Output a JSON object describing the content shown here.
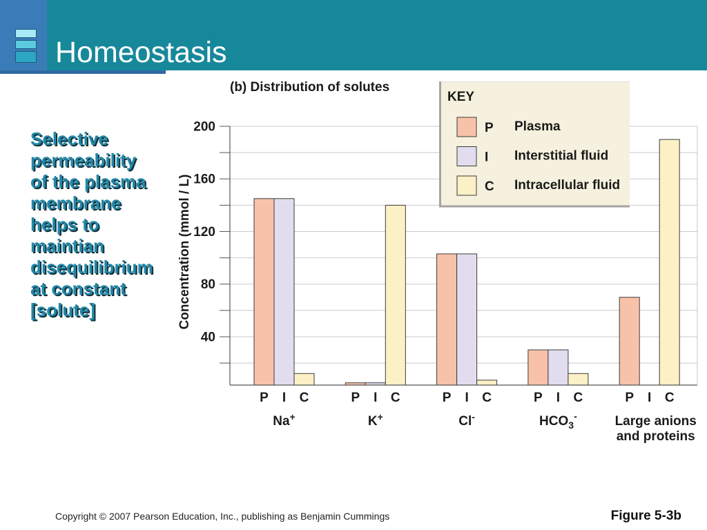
{
  "slide": {
    "title": "Homeostasis",
    "logo_icon": "stacked-bars-icon"
  },
  "body": {
    "lines": [
      "Selective",
      "permeability",
      "of the plasma",
      "membrane",
      "helps to",
      "maintian",
      "disequilibrium",
      "at constant",
      "[solute]"
    ]
  },
  "theme": {
    "header_bg": "#17889a",
    "logo_bg": "#3a7cb8",
    "body_text": "#2288a8",
    "key_bg": "#f5f1de"
  },
  "chart_data": {
    "type": "bar",
    "title": "(b) Distribution of solutes",
    "xlabel": "",
    "ylabel": "Concentration (mmol / L)",
    "ylim": [
      0,
      200
    ],
    "yticks": [
      40,
      80,
      120,
      160,
      200
    ],
    "grid": true,
    "grid_step": 20,
    "categories": [
      {
        "text": "Na",
        "sup": "+"
      },
      {
        "text": "K",
        "sup": "+"
      },
      {
        "text": "Cl",
        "sup": "-"
      },
      {
        "text": "HCO",
        "sub": "3",
        "sup": "-"
      },
      {
        "lines": [
          "Large anions",
          "and proteins"
        ]
      }
    ],
    "series": [
      {
        "key": "P",
        "name": "Plasma",
        "color": "#f8c2aa",
        "values": [
          145,
          5,
          103,
          30,
          70
        ]
      },
      {
        "key": "I",
        "name": "Interstitial fluid",
        "color": "#e2ddee",
        "values": [
          145,
          5,
          103,
          30,
          0
        ]
      },
      {
        "key": "C",
        "name": "Intracellular fluid",
        "color": "#fcf0c6",
        "values": [
          12,
          140,
          7,
          12,
          190
        ]
      }
    ],
    "legend": {
      "title": "KEY",
      "position": "top-right"
    }
  },
  "footer": {
    "copyright": "Copyright © 2007 Pearson Education, Inc., publishing as Benjamin Cummings",
    "figure_label": "Figure 5-3b"
  }
}
